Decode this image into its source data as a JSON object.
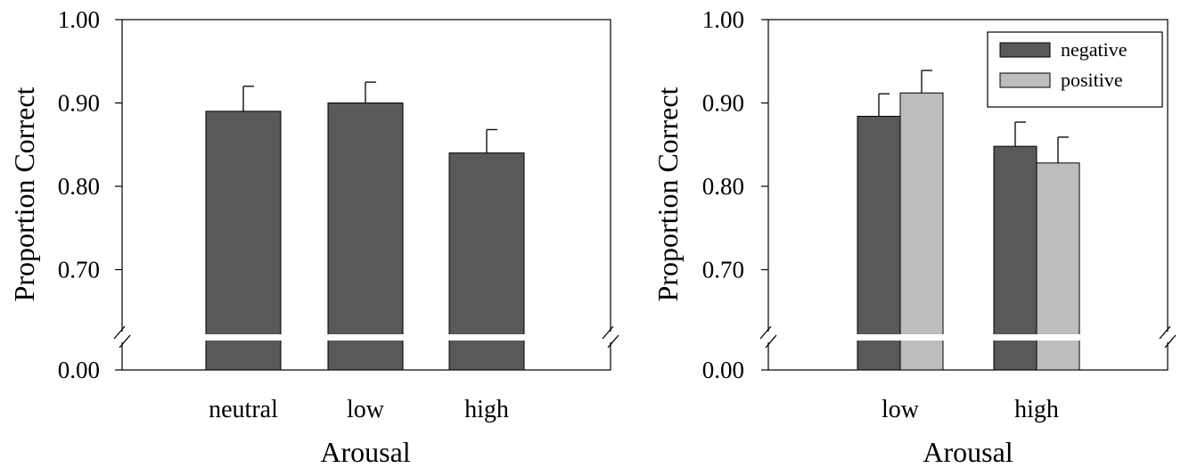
{
  "chart_data": [
    {
      "type": "bar",
      "xlabel": "Arousal",
      "ylabel": "Proportion Correct",
      "categories": [
        "neutral",
        "low",
        "high"
      ],
      "series": [
        {
          "values": [
            0.89,
            0.9,
            0.84
          ],
          "errors": [
            0.03,
            0.025,
            0.028
          ],
          "color": "#595959"
        }
      ],
      "yticks": [
        "1.00",
        "0.90",
        "0.80",
        "0.70",
        "0.00"
      ],
      "ylim": [
        0.6,
        1.0
      ],
      "axis_break": true,
      "grid": false
    },
    {
      "type": "bar",
      "xlabel": "Arousal",
      "ylabel": "Proportion Correct",
      "categories": [
        "low",
        "high"
      ],
      "series": [
        {
          "name": "negative",
          "values": [
            0.884,
            0.848
          ],
          "errors": [
            0.027,
            0.029
          ],
          "color": "#595959"
        },
        {
          "name": "positive",
          "values": [
            0.912,
            0.828
          ],
          "errors": [
            0.027,
            0.031
          ],
          "color": "#bdbdbd"
        }
      ],
      "yticks": [
        "1.00",
        "0.90",
        "0.80",
        "0.70",
        "0.00"
      ],
      "ylim": [
        0.6,
        1.0
      ],
      "axis_break": true,
      "legend": "top-right",
      "grid": false
    }
  ]
}
